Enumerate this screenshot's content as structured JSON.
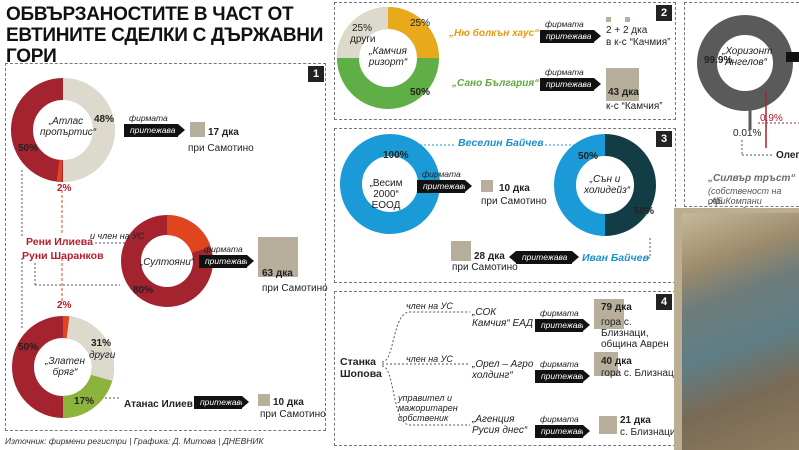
{
  "title": "ОБВЪРЗАНОСТИТЕ В ЧАСТ ОТ ЕВТИНИТЕ СДЕЛКИ С ДЪРЖАВНИ ГОРИ",
  "source": "Източник: фирмени регистри | Графика: Д. Митова | ДНЕВНИК",
  "panel_numbers": [
    "1",
    "2",
    "3",
    "4"
  ],
  "common": {
    "firm": "фирмата",
    "owns": "притежава"
  },
  "panel1": {
    "atlas": {
      "name": "„Атлас пропъртис“",
      "pct_big": "48%",
      "pct_left": "50%",
      "pct_small": "2%",
      "area": "17 дка",
      "place": "при Самотино"
    },
    "sultoyani": {
      "name": "„Султояни“",
      "pct_top": "20%",
      "pct_bottom": "80%",
      "area": "63 дка",
      "place": "при Самотино",
      "member": "и член на УС"
    },
    "people": {
      "p1": "Рени Илиева",
      "p2": "Руни Шаранков"
    },
    "zlaten": {
      "name": "„Златен бряг“",
      "pct_left": "50%",
      "pct_right": "31%",
      "others": "други",
      "pct_small": "2%",
      "pct_green": "17%",
      "person": "Атанас Илиев",
      "area": "10 дка",
      "place": "при Самотино"
    }
  },
  "panel2": {
    "name": "„Камчия ризорт“",
    "others_pct": "25%",
    "others": "други",
    "orange_pct": "25%",
    "green_pct": "50%",
    "firm1": "„Ню болкън хаус“",
    "firm2": "„Сано България“",
    "area1a": "2 + 2 дка",
    "area1b": "в к-с “Качмия”",
    "area2": "43 дка",
    "place2": "к-с “Камчия”"
  },
  "panel3": {
    "vesim": {
      "name": "„Весим 2000“ ЕООД",
      "pct": "100%",
      "person": "Веселин Байчев",
      "area": "10 дка",
      "place": "при Самотино"
    },
    "san": {
      "name": "„Сън и холидейз“",
      "pct_left": "50%",
      "pct_right": "50%",
      "person": "Иван Байчев",
      "area": "28 дка",
      "place": "при Самотино"
    }
  },
  "panel4": {
    "person": "Станка Шопова",
    "role1": "член на УС",
    "role2": "член на УС",
    "role3": "управител и мажоритарен собственик",
    "firms": [
      {
        "name": "„СОК Камчия“ ЕАД",
        "area": "79 дка",
        "place": "гора с. Близнаци, община Аврен"
      },
      {
        "name": "„Орел – Агро холдинг“",
        "area": "40 дка",
        "place": "гора с. Близнаци"
      },
      {
        "name": "„Агенция Русия днес“",
        "area": "21 дка",
        "place": "с. Близнаци"
      }
    ]
  },
  "panel5": {
    "name": "„Хоризонт Ангелов“",
    "pct_left": "99.9%",
    "pct_small": "0.9%",
    "pct_tiny": "0.01%",
    "person": "Олег",
    "silver": "„Силвър тръст“",
    "note1": "(собственост на офи",
    "note2": "„АБ Компани лимитед"
  }
}
